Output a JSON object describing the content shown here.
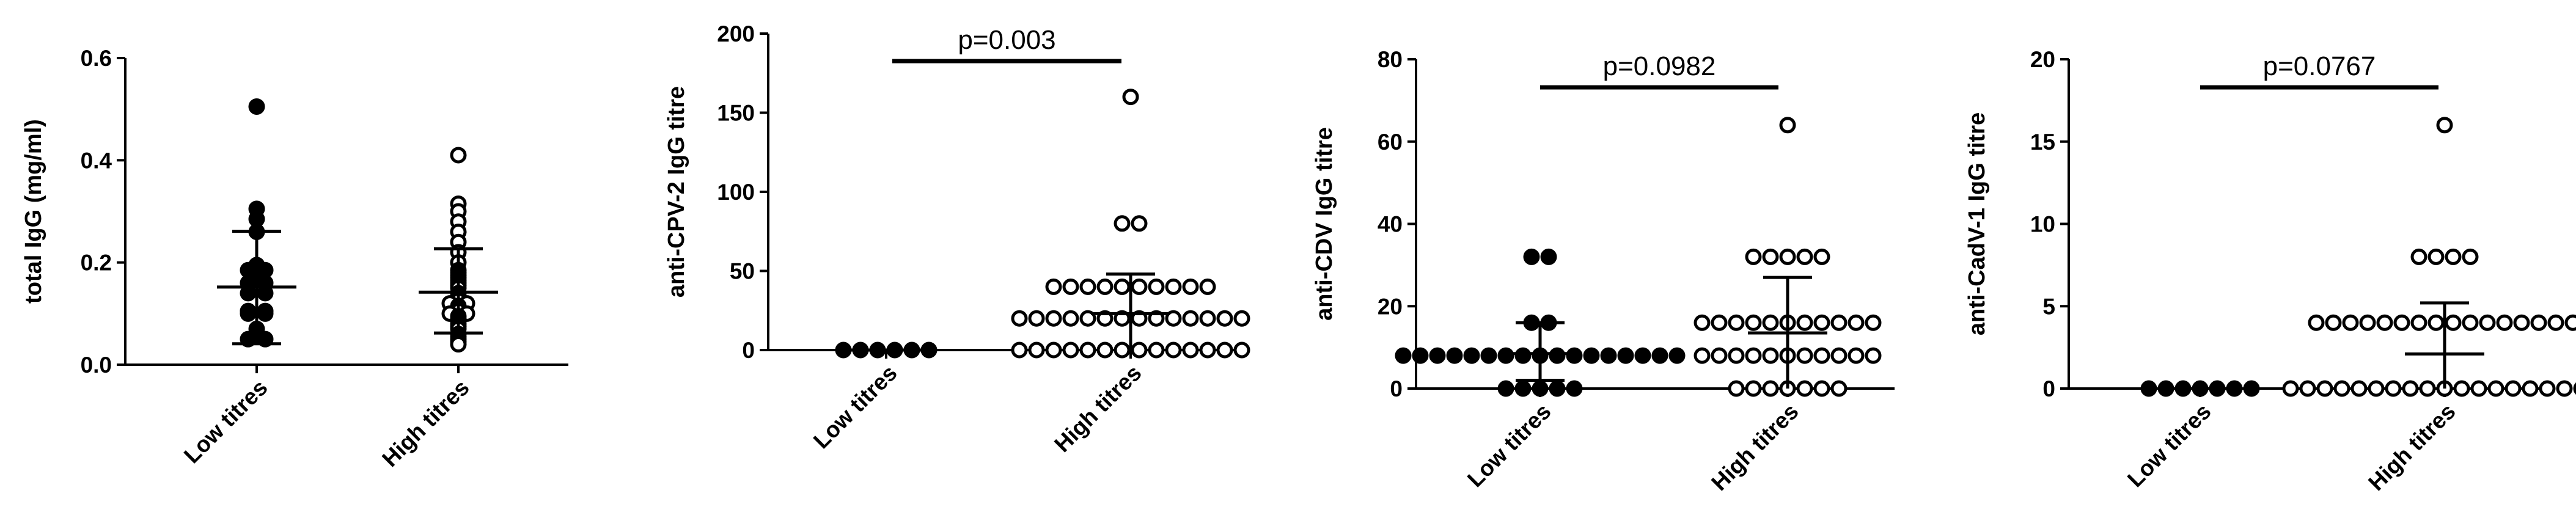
{
  "colors": {
    "ink": "#000000",
    "background": "#ffffff"
  },
  "chart_data": [
    {
      "type": "scatter",
      "ylabel": "total IgG (mg/ml)",
      "ylim": [
        0,
        0.6
      ],
      "yticks": [
        "0.0",
        "0.2",
        "0.4",
        "0.6"
      ],
      "categories": [
        "Low titres",
        "High titres"
      ],
      "p_value": "",
      "groups": [
        {
          "name": "Low titres",
          "marker": "filled",
          "values": [
            0.505,
            0.305,
            0.285,
            0.26,
            0.195,
            0.185,
            0.185,
            0.18,
            0.16,
            0.16,
            0.14,
            0.14,
            0.105,
            0.105,
            0.1,
            0.1,
            0.07,
            0.05,
            0.05
          ],
          "mean": 0.152,
          "sd_low": 0.041,
          "sd_high": 0.261
        },
        {
          "name": "High titres",
          "marker": "open",
          "values": [
            0.41,
            0.315,
            0.3,
            0.28,
            0.26,
            0.24,
            0.22,
            0.2,
            0.185,
            0.18,
            0.175,
            0.17,
            0.165,
            0.16,
            0.155,
            0.15,
            0.14,
            0.135,
            0.13,
            0.125,
            0.12,
            0.12,
            0.115,
            0.11,
            0.105,
            0.1,
            0.1,
            0.095,
            0.09,
            0.085,
            0.08,
            0.075,
            0.07,
            0.06,
            0.055,
            0.05,
            0.045,
            0.04
          ],
          "mean": 0.142,
          "sd_low": 0.062,
          "sd_high": 0.227
        }
      ]
    },
    {
      "type": "scatter",
      "ylabel": "anti-CPV-2 IgG titre",
      "ylim": [
        0,
        200
      ],
      "yticks": [
        "0",
        "50",
        "100",
        "150",
        "200"
      ],
      "categories": [
        "Low titres",
        "High titres"
      ],
      "p_value": "p=0.003",
      "groups": [
        {
          "name": "Low titres",
          "marker": "filled",
          "values": [
            0,
            0,
            0,
            0,
            0,
            0
          ],
          "mean": 0,
          "sd_low": 0,
          "sd_high": 0
        },
        {
          "name": "High titres",
          "marker": "open",
          "values": [
            160,
            80,
            80,
            40,
            40,
            40,
            40,
            40,
            40,
            40,
            40,
            40,
            40,
            20,
            20,
            20,
            20,
            20,
            20,
            20,
            20,
            20,
            20,
            20,
            20,
            20,
            20,
            0,
            0,
            0,
            0,
            0,
            0,
            0,
            0,
            0,
            0,
            0,
            0,
            0,
            0
          ],
          "mean": 23,
          "sd_low": 0,
          "sd_high": 48
        }
      ]
    },
    {
      "type": "scatter",
      "ylabel": "anti-CDV IgG titre",
      "ylim": [
        0,
        80
      ],
      "yticks": [
        "0",
        "20",
        "40",
        "60",
        "80"
      ],
      "categories": [
        "Low titres",
        "High titres"
      ],
      "p_value": "p=0.0982",
      "groups": [
        {
          "name": "Low titres",
          "marker": "filled",
          "values": [
            32,
            32,
            16,
            16,
            8,
            8,
            8,
            8,
            8,
            8,
            8,
            8,
            8,
            8,
            8,
            8,
            8,
            8,
            8,
            8,
            8,
            0,
            0,
            0,
            0,
            0
          ],
          "mean": 8.5,
          "sd_low": 2,
          "sd_high": 16
        },
        {
          "name": "High titres",
          "marker": "open",
          "values": [
            64,
            32,
            32,
            32,
            32,
            32,
            16,
            16,
            16,
            16,
            16,
            16,
            16,
            16,
            16,
            16,
            16,
            8,
            8,
            8,
            8,
            8,
            8,
            8,
            8,
            8,
            8,
            8,
            0,
            0,
            0,
            0,
            0,
            0,
            0
          ],
          "mean": 13.5,
          "sd_low": 0,
          "sd_high": 27
        }
      ]
    },
    {
      "type": "scatter",
      "ylabel": "anti-CadV-1 IgG titre",
      "ylim": [
        0,
        20
      ],
      "yticks": [
        "0",
        "5",
        "10",
        "15",
        "20"
      ],
      "categories": [
        "Low titres",
        "High titres"
      ],
      "p_value": "p=0.0767",
      "groups": [
        {
          "name": "Low titres",
          "marker": "filled",
          "values": [
            0,
            0,
            0,
            0,
            0,
            0,
            0
          ],
          "mean": 0,
          "sd_low": 0,
          "sd_high": 0
        },
        {
          "name": "High titres",
          "marker": "open",
          "values": [
            16,
            8,
            8,
            8,
            8,
            4,
            4,
            4,
            4,
            4,
            4,
            4,
            4,
            4,
            4,
            4,
            4,
            4,
            4,
            4,
            4,
            0,
            0,
            0,
            0,
            0,
            0,
            0,
            0,
            0,
            0,
            0,
            0,
            0,
            0,
            0,
            0,
            0,
            0,
            0
          ],
          "mean": 2.1,
          "sd_low": 0,
          "sd_high": 5.2
        }
      ]
    }
  ]
}
